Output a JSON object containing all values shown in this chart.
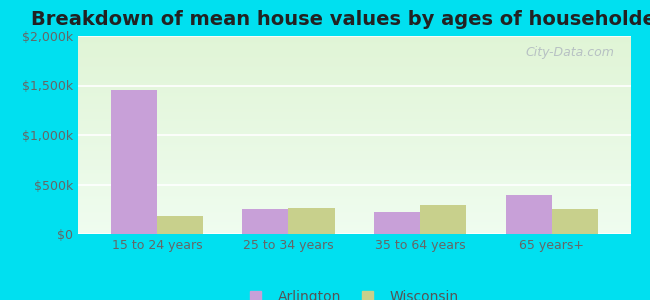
{
  "title": "Breakdown of mean house values by ages of householders",
  "categories": [
    "15 to 24 years",
    "25 to 34 years",
    "35 to 64 years",
    "65 years+"
  ],
  "arlington_values": [
    1450000,
    250000,
    220000,
    390000
  ],
  "wisconsin_values": [
    185000,
    265000,
    295000,
    255000
  ],
  "arlington_color": "#c8a0d8",
  "wisconsin_color": "#c8d08c",
  "ylim": [
    0,
    2000000
  ],
  "yticks": [
    0,
    500000,
    1000000,
    1500000,
    2000000
  ],
  "ytick_labels": [
    "$0",
    "$500k",
    "$1,000k",
    "$1,500k",
    "$2,000k"
  ],
  "legend_labels": [
    "Arlington",
    "Wisconsin"
  ],
  "bar_width": 0.35,
  "title_fontsize": 14,
  "background_outer": "#00e0f0",
  "watermark": "City-Data.com"
}
